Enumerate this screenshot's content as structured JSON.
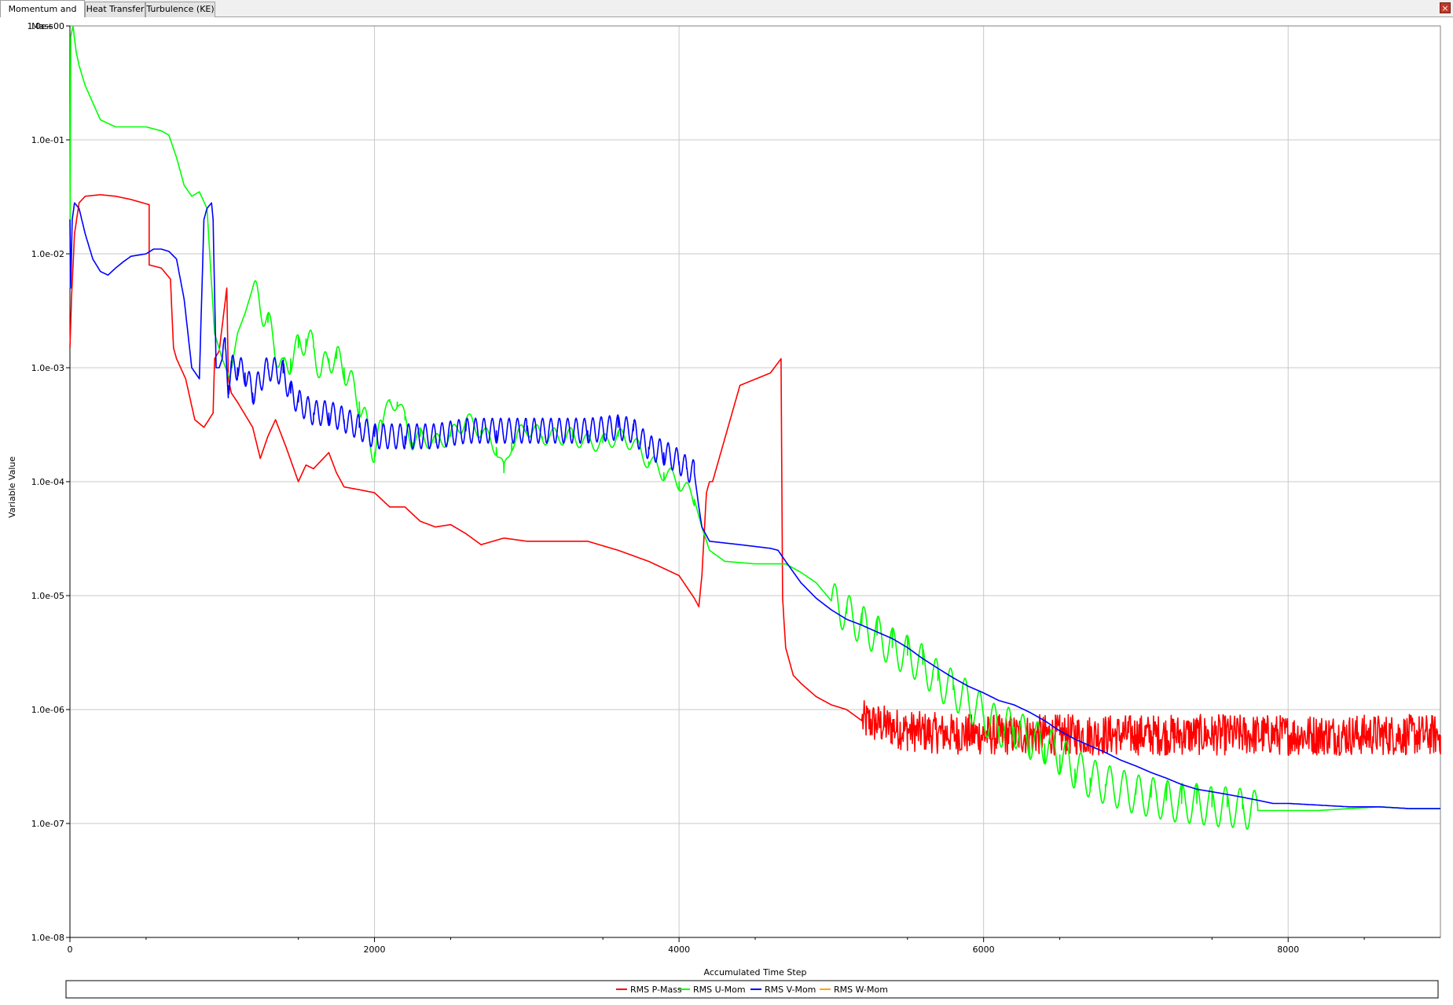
{
  "tabs": [
    {
      "label": "Momentum and Mass",
      "active": true
    },
    {
      "label": "Heat Transfer",
      "active": false
    },
    {
      "label": "Turbulence (KE)",
      "active": false
    }
  ],
  "close_label": "×",
  "chart_data": {
    "type": "line",
    "xlabel": "Accumulated Time Step",
    "ylabel": "Variable Value",
    "yscale": "log",
    "xlim": [
      0,
      9000
    ],
    "ylim": [
      1e-08,
      1
    ],
    "xticks": [
      0,
      2000,
      4000,
      6000,
      8000
    ],
    "xtick_labels": [
      "0",
      "2000",
      "4000",
      "6000",
      "8000"
    ],
    "yticks": [
      1.0,
      0.1,
      0.01,
      0.001,
      0.0001,
      1e-05,
      1e-06,
      1e-07,
      1e-08
    ],
    "ytick_labels": [
      "1.0e+00",
      "1.0e-01",
      "1.0e-02",
      "1.0e-03",
      "1.0e-04",
      "1.0e-05",
      "1.0e-06",
      "1.0e-07",
      "1.0e-08"
    ],
    "grid": true,
    "legend_position": "bottom",
    "series": [
      {
        "name": "RMS P-Mass",
        "color": "#ff0000",
        "x": [
          0,
          10,
          30,
          60,
          100,
          200,
          300,
          400,
          520,
          520,
          600,
          660,
          680,
          700,
          760,
          820,
          880,
          940,
          950,
          980,
          1030,
          1040,
          1060,
          1100,
          1200,
          1250,
          1300,
          1350,
          1420,
          1500,
          1550,
          1600,
          1700,
          1750,
          1800,
          1900,
          2000,
          2100,
          2200,
          2300,
          2400,
          2500,
          2600,
          2700,
          2850,
          3000,
          3200,
          3400,
          3600,
          3800,
          4000,
          4100,
          4130,
          4150,
          4180,
          4200,
          4220,
          4400,
          4600,
          4670,
          4680,
          4700,
          4750,
          4800,
          4900,
          5000,
          5100,
          5200,
          5300,
          5400,
          5500,
          5700,
          6000,
          6500,
          7000,
          7500,
          8000,
          8500,
          9000
        ],
        "y": [
          0.0015,
          0.004,
          0.015,
          0.028,
          0.032,
          0.033,
          0.032,
          0.03,
          0.027,
          0.008,
          0.0075,
          0.006,
          0.0015,
          0.0012,
          0.0008,
          0.00035,
          0.0003,
          0.0004,
          0.0012,
          0.0014,
          0.005,
          0.0008,
          0.0006,
          0.0005,
          0.0003,
          0.00016,
          0.00025,
          0.00035,
          0.0002,
          0.0001,
          0.00014,
          0.00013,
          0.00018,
          0.00012,
          9e-05,
          8.5e-05,
          8e-05,
          6e-05,
          6e-05,
          4.5e-05,
          4e-05,
          4.2e-05,
          3.5e-05,
          2.8e-05,
          3.2e-05,
          3e-05,
          3e-05,
          3e-05,
          2.5e-05,
          2e-05,
          1.5e-05,
          9.5e-06,
          8e-06,
          1.5e-05,
          8e-05,
          0.0001,
          0.0001,
          0.0007,
          0.0009,
          0.0012,
          9.5e-06,
          3.5e-06,
          2e-06,
          1.7e-06,
          1.3e-06,
          1.1e-06,
          1e-06,
          8e-07,
          7.5e-07,
          7e-07,
          6.5e-07,
          6.2e-07,
          6e-07,
          6e-07,
          6e-07,
          6e-07,
          6e-07,
          6e-07,
          6e-07
        ],
        "noise_after_x": 5200,
        "noise_amplitude": 0.18
      },
      {
        "name": "RMS U-Mom",
        "color": "#00ff00",
        "x": [
          0,
          5,
          20,
          40,
          60,
          100,
          200,
          300,
          400,
          500,
          600,
          650,
          700,
          750,
          800,
          850,
          900,
          950,
          1000,
          1050,
          1100,
          1150,
          1200,
          1300,
          1400,
          1450,
          1500,
          1550,
          1600,
          1650,
          1700,
          1750,
          1800,
          1900,
          2000,
          2050,
          2100,
          2150,
          2200,
          2250,
          2300,
          2400,
          2500,
          2600,
          2700,
          2800,
          2850,
          2900,
          3000,
          3100,
          3200,
          3300,
          3400,
          3500,
          3600,
          3700,
          3800,
          3900,
          4000,
          4100,
          4150,
          4200,
          4300,
          4500,
          4700,
          4800,
          4900,
          5000,
          5100,
          5200,
          5300,
          5400,
          5500,
          5600,
          5700,
          5800,
          5900,
          6000,
          6100,
          6200,
          6300,
          6400,
          6500,
          6600,
          6700,
          6800,
          6900,
          7000,
          7100,
          7200,
          7300,
          7400,
          7500,
          7600,
          7700,
          7800,
          7900,
          8000,
          8200,
          8400,
          8600,
          8800,
          9000
        ],
        "y": [
          0.005,
          0.8,
          1.0,
          0.6,
          0.45,
          0.3,
          0.15,
          0.13,
          0.13,
          0.13,
          0.12,
          0.11,
          0.07,
          0.04,
          0.032,
          0.035,
          0.025,
          0.002,
          0.0012,
          0.0008,
          0.002,
          0.003,
          0.005,
          0.0025,
          0.0009,
          0.0012,
          0.0015,
          0.0018,
          0.0015,
          0.0009,
          0.0012,
          0.0012,
          0.001,
          0.0005,
          0.00018,
          0.0003,
          0.0005,
          0.0005,
          0.00035,
          0.00022,
          0.00025,
          0.00022,
          0.00025,
          0.00035,
          0.00028,
          0.0002,
          0.00012,
          0.00022,
          0.0003,
          0.00025,
          0.00025,
          0.00025,
          0.00022,
          0.00022,
          0.00025,
          0.00022,
          0.00015,
          0.00012,
          0.0001,
          7e-05,
          4e-05,
          2.5e-05,
          2e-05,
          1.9e-05,
          1.9e-05,
          1.6e-05,
          1.3e-05,
          9e-06,
          7e-06,
          5.5e-06,
          4.5e-06,
          3.5e-06,
          3e-06,
          2.5e-06,
          1.8e-06,
          1.5e-06,
          1.2e-06,
          9e-07,
          7e-07,
          7e-07,
          5.5e-07,
          5e-07,
          4e-07,
          3e-07,
          2.5e-07,
          2.2e-07,
          2e-07,
          1.8e-07,
          1.7e-07,
          1.6e-07,
          1.5e-07,
          1.5e-07,
          1.4e-07,
          1.4e-07,
          1.35e-07,
          1.3e-07,
          1.3e-07,
          1.3e-07,
          1.3e-07,
          1.35e-07,
          1.4e-07,
          1.35e-07,
          1.35e-07
        ],
        "oscillation": [
          [
            1200,
            2050,
            90,
            0.25
          ],
          [
            2050,
            4100,
            110,
            0.15
          ],
          [
            5000,
            7800,
            95,
            0.35
          ]
        ]
      },
      {
        "name": "RMS V-Mom",
        "color": "#0000ff",
        "x": [
          0,
          5,
          15,
          30,
          60,
          100,
          150,
          200,
          250,
          300,
          350,
          400,
          500,
          550,
          600,
          650,
          700,
          750,
          800,
          850,
          880,
          900,
          930,
          940,
          960,
          980,
          1000,
          1020,
          1040,
          1060,
          1100,
          1150,
          1200,
          1300,
          1400,
          1450,
          1500,
          1600,
          1700,
          1800,
          1900,
          2000,
          2200,
          2400,
          2600,
          2800,
          3000,
          3200,
          3400,
          3600,
          3700,
          3800,
          3900,
          4000,
          4050,
          4100,
          4130,
          4150,
          4200,
          4400,
          4600,
          4650,
          4700,
          4800,
          4900,
          5000,
          5100,
          5200,
          5300,
          5400,
          5500,
          5600,
          5700,
          5800,
          5900,
          6000,
          6100,
          6200,
          6300,
          6400,
          6500,
          6600,
          6700,
          6800,
          6900,
          7000,
          7100,
          7200,
          7300,
          7400,
          7500,
          7600,
          7700,
          7800,
          7900,
          8000,
          8200,
          8400,
          8600,
          8800,
          9000
        ],
        "y": [
          0.02,
          0.005,
          0.02,
          0.028,
          0.025,
          0.015,
          0.009,
          0.007,
          0.0065,
          0.0075,
          0.0085,
          0.0095,
          0.01,
          0.011,
          0.011,
          0.0105,
          0.009,
          0.004,
          0.001,
          0.0008,
          0.02,
          0.025,
          0.028,
          0.02,
          0.001,
          0.001,
          0.0012,
          0.0015,
          0.0007,
          0.001,
          0.001,
          0.0009,
          0.0006,
          0.001,
          0.0009,
          0.0006,
          0.0005,
          0.0004,
          0.0004,
          0.00035,
          0.0003,
          0.00025,
          0.00025,
          0.00025,
          0.00028,
          0.00028,
          0.00028,
          0.00028,
          0.00028,
          0.0003,
          0.00028,
          0.0002,
          0.00018,
          0.00015,
          0.00013,
          0.00012,
          6e-05,
          4e-05,
          3e-05,
          2.8e-05,
          2.6e-05,
          2.5e-05,
          2e-05,
          1.3e-05,
          9.5e-06,
          7.5e-06,
          6.2e-06,
          5.5e-06,
          4.8e-06,
          4.2e-06,
          3.5e-06,
          2.8e-06,
          2.3e-06,
          1.9e-06,
          1.6e-06,
          1.4e-06,
          1.2e-06,
          1.1e-06,
          9.5e-07,
          8e-07,
          6.5e-07,
          5.5e-07,
          4.8e-07,
          4.2e-07,
          3.6e-07,
          3.2e-07,
          2.8e-07,
          2.5e-07,
          2.2e-07,
          2e-07,
          1.9e-07,
          1.8e-07,
          1.7e-07,
          1.6e-07,
          1.5e-07,
          1.5e-07,
          1.45e-07,
          1.4e-07,
          1.4e-07,
          1.35e-07,
          1.35e-07
        ],
        "oscillation": [
          [
            1000,
            4100,
            55,
            0.22
          ]
        ]
      },
      {
        "name": "RMS W-Mom",
        "color": "#ffa500",
        "x": [],
        "y": []
      }
    ]
  }
}
